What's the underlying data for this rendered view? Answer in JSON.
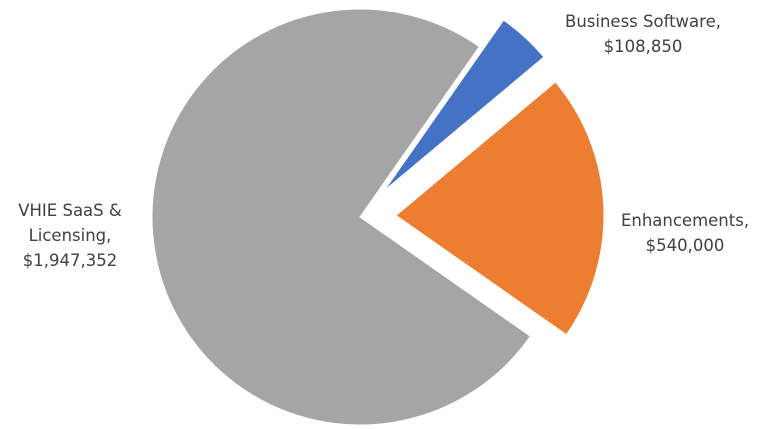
{
  "chart_data": {
    "type": "pie",
    "title": "",
    "legend": "none",
    "slices": [
      {
        "name": "Business Software",
        "value": 108850,
        "color": "#4472C4",
        "label_lines": [
          "Business Software,",
          "$108,850"
        ]
      },
      {
        "name": "Enhancements",
        "value": 540000,
        "color": "#ED7D31",
        "label_lines": [
          "Enhancements,",
          "$540,000"
        ]
      },
      {
        "name": "VHIE SaaS & Licensing",
        "value": 1947352,
        "color": "#A5A5A5",
        "label_lines": [
          "VHIE SaaS &",
          "Licensing,",
          "$1,947,352"
        ]
      }
    ],
    "exploded": true
  }
}
